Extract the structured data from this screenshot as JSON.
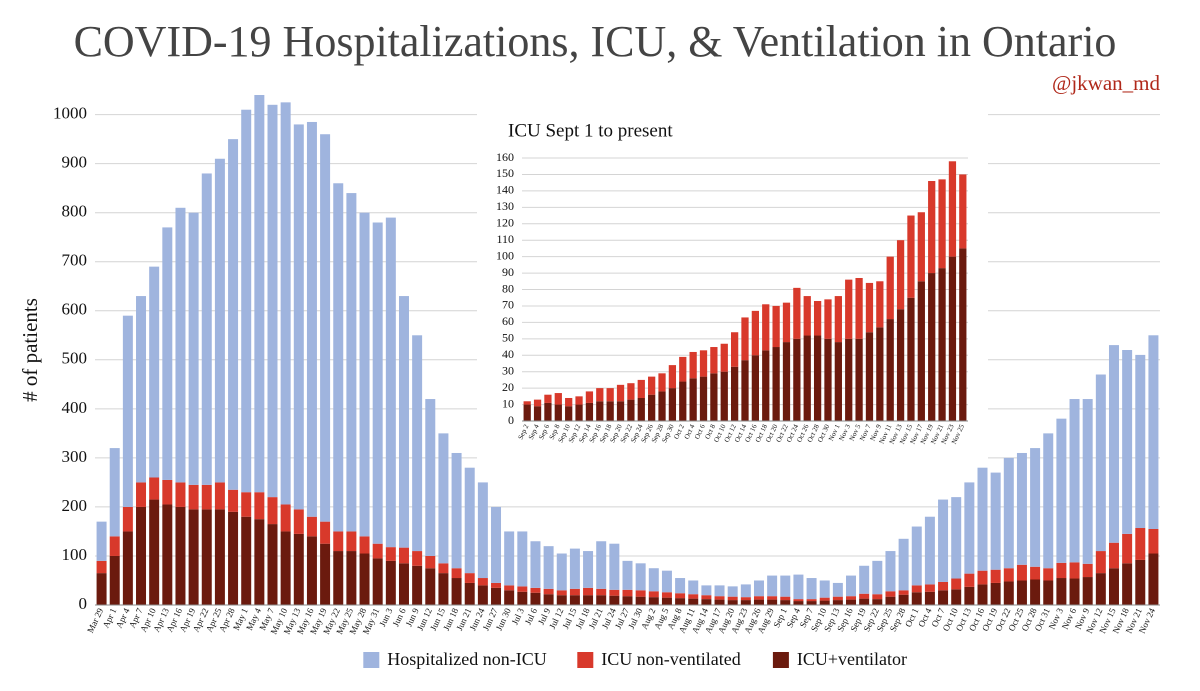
{
  "chart_data": [
    {
      "type": "bar",
      "title": "COVID-19 Hospitalizations, ICU, & Ventilation in Ontario",
      "subtitle": "@jkwan_md",
      "ylabel": "# of patients",
      "categories": [
        "Mar 29",
        "Apr 1",
        "Apr 4",
        "Apr 7",
        "Apr 10",
        "Apr 13",
        "Apr 16",
        "Apr 19",
        "Apr 22",
        "Apr 25",
        "Apr 28",
        "May 1",
        "May 4",
        "May 7",
        "May 10",
        "May 13",
        "May 16",
        "May 19",
        "May 22",
        "May 25",
        "May 28",
        "May 31",
        "Jun 3",
        "Jun 6",
        "Jun 9",
        "Jun 12",
        "Jun 15",
        "Jun 18",
        "Jun 21",
        "Jun 24",
        "Jun 27",
        "Jun 30",
        "Jul 3",
        "Jul 6",
        "Jul 9",
        "Jul 12",
        "Jul 15",
        "Jul 18",
        "Jul 21",
        "Jul 24",
        "Jul 27",
        "Jul 30",
        "Aug 2",
        "Aug 5",
        "Aug 8",
        "Aug 11",
        "Aug 14",
        "Aug 17",
        "Aug 20",
        "Aug 23",
        "Aug 26",
        "Aug 29",
        "Sep 1",
        "Sep 4",
        "Sep 7",
        "Sep 10",
        "Sep 13",
        "Sep 16",
        "Sep 19",
        "Sep 22",
        "Sep 25",
        "Sep 28",
        "Oct 1",
        "Oct 4",
        "Oct 7",
        "Oct 10",
        "Oct 13",
        "Oct 16",
        "Oct 19",
        "Oct 22",
        "Oct 25",
        "Oct 28",
        "Oct 31",
        "Nov 3",
        "Nov 6",
        "Nov 9",
        "Nov 12",
        "Nov 15",
        "Nov 18",
        "Nov 21",
        "Nov 24"
      ],
      "series": [
        {
          "name": "Hospitalized non-ICU",
          "color": "#9fb4de",
          "values": [
            80,
            180,
            390,
            380,
            430,
            515,
            560,
            555,
            635,
            660,
            715,
            780,
            810,
            800,
            820,
            785,
            805,
            790,
            710,
            690,
            660,
            655,
            672,
            513,
            440,
            320,
            265,
            235,
            215,
            195,
            155,
            110,
            112,
            95,
            87,
            75,
            82,
            75,
            97,
            94,
            59,
            55,
            47,
            44,
            31,
            28,
            20,
            22,
            21,
            26,
            32,
            42,
            43,
            50,
            43,
            35,
            28,
            42,
            57,
            68,
            82,
            105,
            120,
            138,
            168,
            166,
            186,
            210,
            198,
            225,
            228,
            242,
            275,
            294,
            333,
            336,
            360,
            403,
            375,
            353,
            395
          ]
        },
        {
          "name": "ICU non-ventilated",
          "color": "#d8392b",
          "values": [
            25,
            40,
            50,
            50,
            45,
            50,
            50,
            50,
            50,
            55,
            45,
            50,
            55,
            55,
            55,
            50,
            40,
            45,
            40,
            40,
            35,
            30,
            28,
            32,
            30,
            25,
            20,
            20,
            20,
            15,
            10,
            10,
            11,
            10,
            11,
            10,
            13,
            15,
            13,
            12,
            13,
            13,
            12,
            11,
            10,
            9,
            8,
            7,
            7,
            6,
            7,
            7,
            7,
            4,
            4,
            6,
            7,
            7,
            10,
            10,
            11,
            9,
            14,
            15,
            17,
            22,
            27,
            28,
            27,
            27,
            32,
            26,
            25,
            31,
            33,
            27,
            45,
            52,
            60,
            65,
            50
          ]
        },
        {
          "name": "ICU+ventilator",
          "color": "#6b1a0e",
          "values": [
            65,
            100,
            150,
            200,
            215,
            205,
            200,
            195,
            195,
            195,
            190,
            180,
            175,
            165,
            150,
            145,
            140,
            125,
            110,
            110,
            105,
            95,
            90,
            85,
            80,
            75,
            65,
            55,
            45,
            40,
            35,
            30,
            27,
            25,
            22,
            20,
            20,
            20,
            20,
            19,
            18,
            17,
            16,
            15,
            14,
            13,
            12,
            11,
            10,
            10,
            11,
            11,
            10,
            8,
            8,
            9,
            10,
            11,
            13,
            12,
            17,
            21,
            26,
            27,
            30,
            32,
            37,
            42,
            45,
            48,
            50,
            52,
            50,
            55,
            54,
            57,
            65,
            75,
            85,
            92,
            105
          ]
        }
      ],
      "ylim": [
        0,
        1040
      ],
      "yticks": [
        0,
        100,
        200,
        300,
        400,
        500,
        600,
        700,
        800,
        900,
        1000
      ],
      "grid": true,
      "legend": "bottom"
    },
    {
      "type": "bar",
      "title": "ICU Sept 1 to present",
      "categories": [
        "Sep 2",
        "Sep 4",
        "Sep 6",
        "Sep 8",
        "Sep 10",
        "Sep 12",
        "Sep 14",
        "Sep 16",
        "Sep 18",
        "Sep 20",
        "Sep 22",
        "Sep 24",
        "Sep 26",
        "Sep 28",
        "Sep 30",
        "Oct 2",
        "Oct 4",
        "Oct 6",
        "Oct 8",
        "Oct 10",
        "Oct 12",
        "Oct 14",
        "Oct 16",
        "Oct 18",
        "Oct 20",
        "Oct 22",
        "Oct 24",
        "Oct 26",
        "Oct 28",
        "Oct 30",
        "Nov 1",
        "Nov 3",
        "Nov 5",
        "Nov 7",
        "Nov 9",
        "Nov 11",
        "Nov 13",
        "Nov 15",
        "Nov 17",
        "Nov 19",
        "Nov 21",
        "Nov 23",
        "Nov 25"
      ],
      "series": [
        {
          "color": "#d8392b",
          "values": [
            2,
            4,
            5,
            7,
            5,
            5,
            7,
            8,
            8,
            10,
            10,
            11,
            11,
            11,
            14,
            15,
            16,
            16,
            16,
            17,
            21,
            26,
            27,
            28,
            25,
            24,
            31,
            24,
            21,
            24,
            28,
            36,
            37,
            30,
            28,
            38,
            42,
            50,
            42,
            56,
            54,
            58,
            45
          ]
        },
        {
          "color": "#6b1a0e",
          "values": [
            10,
            9,
            11,
            10,
            9,
            10,
            11,
            12,
            12,
            12,
            13,
            14,
            16,
            18,
            20,
            24,
            26,
            27,
            29,
            30,
            33,
            37,
            40,
            43,
            45,
            48,
            50,
            52,
            52,
            50,
            48,
            50,
            50,
            54,
            57,
            62,
            68,
            75,
            85,
            90,
            93,
            100,
            105
          ]
        }
      ],
      "ylim": [
        0,
        160
      ],
      "yticks": [
        0,
        10,
        20,
        30,
        40,
        50,
        60,
        70,
        80,
        90,
        100,
        110,
        120,
        130,
        140,
        150,
        160
      ],
      "grid": true
    }
  ]
}
